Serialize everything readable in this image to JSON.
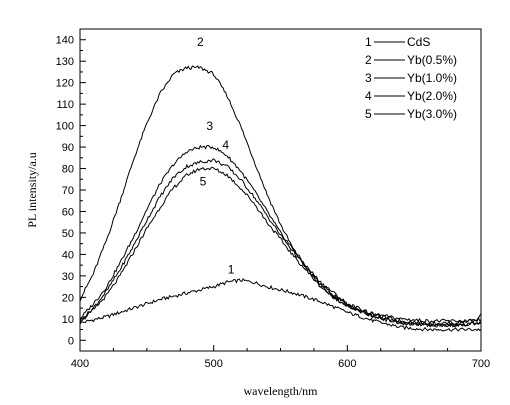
{
  "chart_data": {
    "type": "line",
    "title": "",
    "xlabel": "wavelength/nm",
    "ylabel": "PL  intensity/a.u",
    "xlim": [
      400,
      700
    ],
    "ylim": [
      -5,
      145
    ],
    "xticks": [
      400,
      500,
      600,
      700
    ],
    "yticks": [
      0,
      10,
      20,
      30,
      40,
      50,
      60,
      70,
      80,
      90,
      100,
      110,
      120,
      130,
      140
    ],
    "grid": false,
    "legend_position": "top-right",
    "series": [
      {
        "name": "CdS",
        "label": "1",
        "legend_index": "1",
        "color": "#000000",
        "x": [
          400,
          420,
          440,
          460,
          480,
          500,
          510,
          520,
          530,
          540,
          560,
          580,
          600,
          620,
          640,
          660,
          680,
          700
        ],
        "y": [
          8,
          11,
          15,
          19,
          22,
          25,
          27,
          28,
          27,
          25,
          22,
          18,
          13,
          9,
          6,
          5,
          5,
          5
        ]
      },
      {
        "name": "Yb(0.5%)",
        "label": "2",
        "legend_index": "2",
        "color": "#000000",
        "x": [
          400,
          410,
          420,
          430,
          440,
          450,
          460,
          470,
          480,
          490,
          500,
          510,
          520,
          530,
          540,
          550,
          560,
          570,
          580,
          590,
          600,
          620,
          640,
          660,
          680,
          697,
          700
        ],
        "y": [
          19,
          31,
          47,
          65,
          84,
          101,
          115,
          124,
          127,
          127,
          124,
          114,
          100,
          84,
          68,
          54,
          42,
          33,
          25,
          20,
          16,
          12,
          10,
          9,
          9,
          9,
          12
        ]
      },
      {
        "name": "Yb(1.0%)",
        "label": "3",
        "legend_index": "3",
        "color": "#000000",
        "x": [
          400,
          410,
          420,
          430,
          440,
          450,
          460,
          470,
          480,
          490,
          500,
          510,
          520,
          530,
          540,
          550,
          560,
          570,
          580,
          590,
          600,
          620,
          640,
          660,
          680,
          700
        ],
        "y": [
          10,
          17,
          25,
          36,
          48,
          61,
          73,
          82,
          88,
          90,
          90,
          86,
          79,
          70,
          60,
          50,
          42,
          34,
          27,
          22,
          17,
          12,
          9,
          8,
          8,
          10
        ]
      },
      {
        "name": "Yb(2.0%)",
        "label": "4",
        "legend_index": "4",
        "color": "#000000",
        "x": [
          400,
          410,
          420,
          430,
          440,
          450,
          460,
          470,
          480,
          490,
          500,
          510,
          520,
          530,
          540,
          550,
          560,
          570,
          580,
          590,
          600,
          620,
          640,
          660,
          680,
          700
        ],
        "y": [
          9,
          15,
          23,
          33,
          44,
          56,
          67,
          76,
          81,
          83,
          84,
          81,
          75,
          67,
          58,
          49,
          41,
          33,
          26,
          21,
          16,
          11,
          8,
          7,
          7,
          8
        ]
      },
      {
        "name": "Yb(3.0%)",
        "label": "5",
        "legend_index": "5",
        "color": "#000000",
        "x": [
          400,
          410,
          420,
          430,
          440,
          450,
          460,
          470,
          480,
          490,
          500,
          510,
          520,
          530,
          540,
          550,
          560,
          570,
          580,
          590,
          600,
          620,
          640,
          660,
          680,
          700
        ],
        "y": [
          9,
          14,
          21,
          30,
          41,
          52,
          62,
          71,
          77,
          80,
          80,
          77,
          71,
          64,
          55,
          47,
          39,
          32,
          25,
          20,
          16,
          11,
          8,
          7,
          7,
          8
        ]
      }
    ]
  }
}
